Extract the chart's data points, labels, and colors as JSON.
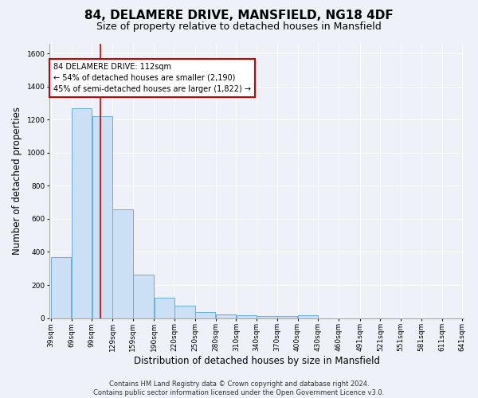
{
  "title": "84, DELAMERE DRIVE, MANSFIELD, NG18 4DF",
  "subtitle": "Size of property relative to detached houses in Mansfield",
  "xlabel": "Distribution of detached houses by size in Mansfield",
  "ylabel": "Number of detached properties",
  "bin_edges": [
    39,
    69,
    99,
    129,
    159,
    190,
    220,
    250,
    280,
    310,
    340,
    370,
    400,
    430,
    460,
    491,
    521,
    551,
    581,
    611,
    641
  ],
  "bin_heights": [
    370,
    1270,
    1220,
    660,
    265,
    125,
    75,
    35,
    22,
    15,
    10,
    10,
    15,
    0,
    0,
    0,
    0,
    0,
    0,
    0
  ],
  "x_tick_labels": [
    "39sqm",
    "69sqm",
    "99sqm",
    "129sqm",
    "159sqm",
    "190sqm",
    "220sqm",
    "250sqm",
    "280sqm",
    "310sqm",
    "340sqm",
    "370sqm",
    "400sqm",
    "430sqm",
    "460sqm",
    "491sqm",
    "521sqm",
    "551sqm",
    "581sqm",
    "611sqm",
    "641sqm"
  ],
  "ylim": [
    0,
    1660
  ],
  "yticks": [
    0,
    200,
    400,
    600,
    800,
    1000,
    1200,
    1400,
    1600
  ],
  "bar_color": "#cce0f5",
  "bar_edge_color": "#6aaed6",
  "vline_x": 112,
  "vline_color": "#cc0000",
  "annotation_text": "84 DELAMERE DRIVE: 112sqm\n← 54% of detached houses are smaller (2,190)\n45% of semi-detached houses are larger (1,822) →",
  "footer": "Contains HM Land Registry data © Crown copyright and database right 2024.\nContains public sector information licensed under the Open Government Licence v3.0.",
  "bg_color": "#eef2f8",
  "plot_bg_color": "#eef2f8",
  "title_fontsize": 11,
  "subtitle_fontsize": 9,
  "ylabel_fontsize": 8.5,
  "xlabel_fontsize": 8.5,
  "tick_fontsize": 6.5,
  "ann_fontsize": 7,
  "footer_fontsize": 6
}
